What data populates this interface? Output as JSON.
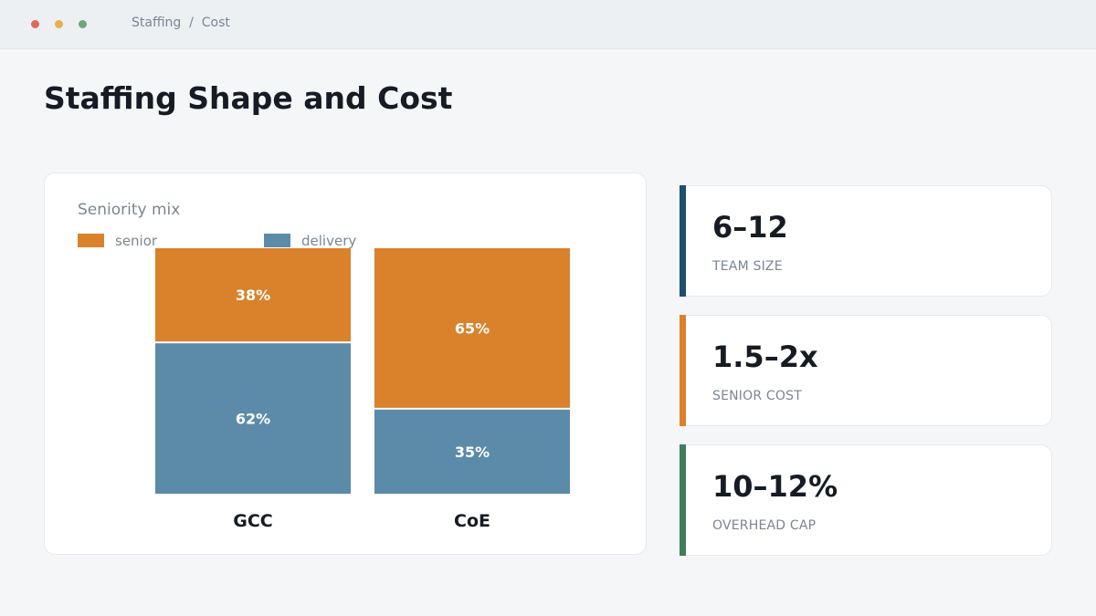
{
  "window": {
    "breadcrumb": "Staffing  /  Cost",
    "traffic_lights": [
      "#e0695a",
      "#e7b04a",
      "#6aa876"
    ]
  },
  "page": {
    "title": "Staffing Shape and Cost"
  },
  "chart_data": {
    "type": "bar",
    "stacked": true,
    "title": "Seniority mix",
    "categories": [
      "GCC",
      "CoE"
    ],
    "series": [
      {
        "name": "delivery",
        "values": [
          62,
          35
        ],
        "color": "#5b8ba9"
      },
      {
        "name": "senior",
        "values": [
          38,
          65
        ],
        "color": "#d9822b"
      }
    ],
    "unit": "%",
    "ylim": [
      0,
      100
    ],
    "grid": false,
    "legend_position": "top-left",
    "legend_order": [
      "senior",
      "delivery"
    ]
  },
  "stats": [
    {
      "value": "6–12",
      "label": "TEAM SIZE",
      "accent": "#1f4e6e"
    },
    {
      "value": "1.5–2x",
      "label": "SENIOR COST",
      "accent": "#d9822b"
    },
    {
      "value": "10–12%",
      "label": "OVERHEAD CAP",
      "accent": "#3f7d5b"
    }
  ]
}
